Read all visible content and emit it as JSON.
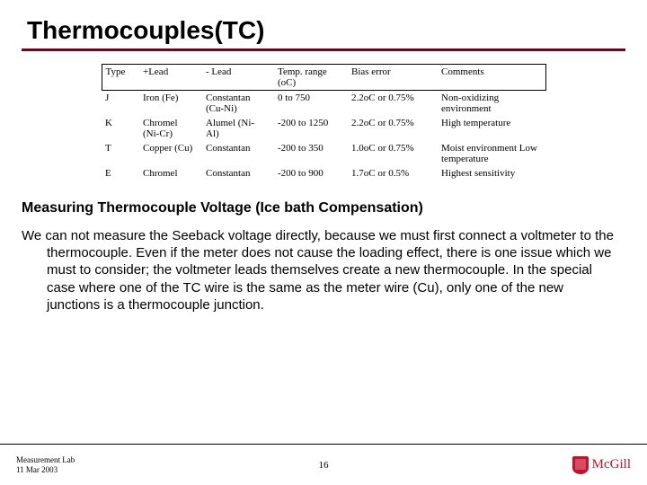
{
  "title": "Thermocouples(TC)",
  "table": {
    "columns": [
      "Type",
      "+Lead",
      "- Lead",
      "Temp. range (oC)",
      "Bias error",
      "Comments"
    ],
    "rows": [
      {
        "type": "J",
        "plead": "Iron (Fe)",
        "mlead": "Constantan (Cu-Ni)",
        "range": "0 to 750",
        "bias": "2.2oC or 0.75%",
        "comments": "Non-oxidizing environment"
      },
      {
        "type": "K",
        "plead": "Chromel (Ni-Cr)",
        "mlead": "Alumel (Ni-Al)",
        "range": "-200 to 1250",
        "bias": "2.2oC or 0.75%",
        "comments": "High temperature"
      },
      {
        "type": "T",
        "plead": "Copper (Cu)",
        "mlead": "Constantan",
        "range": "-200 to 350",
        "bias": "1.0oC or 0.75%",
        "comments": "Moist environment Low temperature"
      },
      {
        "type": "E",
        "plead": "Chromel",
        "mlead": "Constantan",
        "range": "-200 to 900",
        "bias": "1.7oC or 0.5%",
        "comments": "Highest sensitivity"
      }
    ]
  },
  "section_heading": "Measuring  Thermocouple Voltage (Ice bath Compensation)",
  "body_text": "We can not measure the Seeback voltage directly, because we must first connect a voltmeter to the thermocouple. Even if the meter does not cause the loading effect, there is one issue which we must to consider; the voltmeter leads themselves create a new thermocouple. In the special case where one of the TC wire is the same as the meter wire (Cu), only one of the new junctions is a thermocouple junction.",
  "footer": {
    "line1": "Measurement Lab",
    "line2": "11 Mar 2003",
    "page": "16",
    "brand": "McGill"
  },
  "colors": {
    "rule": "#7a0019",
    "brand": "#c8102e"
  }
}
